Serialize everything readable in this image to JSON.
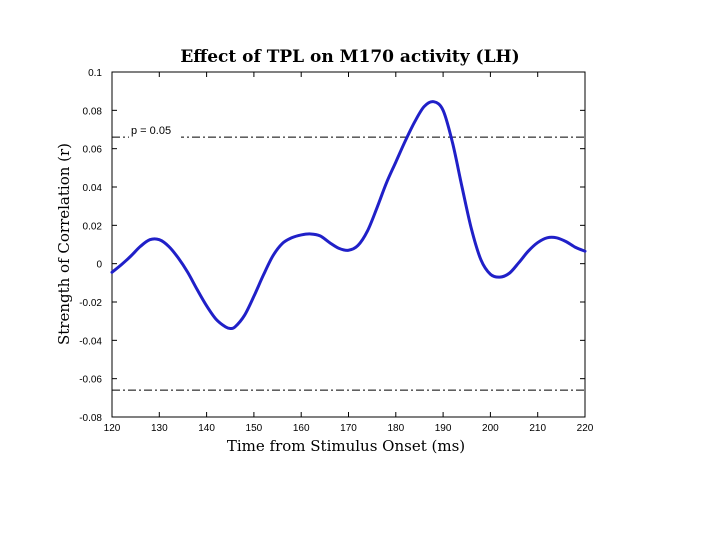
{
  "chart_data": {
    "type": "line",
    "title": "Effect of TPL on M170 activity (LH)",
    "xlabel": "Time from Stimulus Onset (ms)",
    "ylabel": "Strength of Correlation (r)",
    "xlim": [
      120,
      220
    ],
    "ylim": [
      -0.08,
      0.1
    ],
    "xticks": [
      120,
      130,
      140,
      150,
      160,
      170,
      180,
      190,
      200,
      210,
      220
    ],
    "xtick_labels": [
      "120",
      "130",
      "140",
      "150",
      "160",
      "170",
      "180",
      "190",
      "200",
      "210",
      "220"
    ],
    "yticks": [
      0.1,
      0.08,
      0.06,
      0.04,
      0.02,
      0,
      -0.02,
      -0.04,
      -0.06,
      -0.08
    ],
    "ytick_labels": [
      "0.1",
      "0.08",
      "0.06",
      "0.04",
      "0.02",
      "0",
      "-0.02",
      "-0.04",
      "-0.06",
      "-0.08"
    ],
    "grid": false,
    "series": [
      {
        "name": "correlation",
        "color": "#2020c8",
        "x": [
          120,
          122,
          124,
          126,
          128,
          130,
          132,
          134,
          136,
          138,
          140,
          142,
          144,
          145,
          146,
          148,
          150,
          152,
          154,
          156,
          158,
          160,
          162,
          164,
          166,
          168,
          170,
          172,
          174,
          176,
          178,
          180,
          182,
          184,
          186,
          188,
          190,
          192,
          194,
          196,
          198,
          200,
          202,
          204,
          206,
          208,
          210,
          212,
          214,
          216,
          218,
          220
        ],
        "y": [
          -0.0045,
          -0.0005,
          0.004,
          0.009,
          0.0125,
          0.0125,
          0.009,
          0.003,
          -0.0045,
          -0.0135,
          -0.022,
          -0.029,
          -0.033,
          -0.0338,
          -0.033,
          -0.027,
          -0.017,
          -0.006,
          0.004,
          0.0105,
          0.0135,
          0.015,
          0.0155,
          0.0145,
          0.011,
          0.008,
          0.007,
          0.0095,
          0.017,
          0.029,
          0.042,
          0.053,
          0.064,
          0.074,
          0.082,
          0.0845,
          0.08,
          0.063,
          0.04,
          0.018,
          0.002,
          -0.0055,
          -0.007,
          -0.005,
          0.0005,
          0.0065,
          0.011,
          0.0135,
          0.0135,
          0.0115,
          0.0085,
          0.0065
        ]
      }
    ],
    "thresholds": [
      {
        "name": "upper-threshold",
        "value": 0.066,
        "label": "p = 0.05"
      },
      {
        "name": "lower-threshold",
        "value": -0.066,
        "label": ""
      }
    ]
  }
}
